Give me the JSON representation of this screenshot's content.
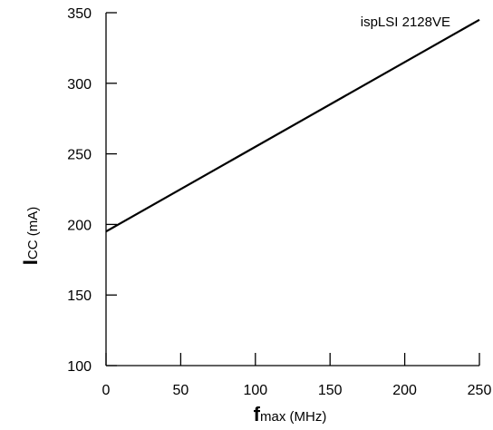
{
  "chart_data": {
    "type": "line",
    "annotation": "ispLSI 2128VE",
    "xlabel": {
      "main": "f",
      "sub": "max",
      "unit": " (MHz)"
    },
    "ylabel": {
      "main": "I",
      "sub": "CC",
      "unit": " (mA)"
    },
    "xlim": [
      0,
      250
    ],
    "ylim": [
      100,
      350
    ],
    "xticks": [
      0,
      50,
      100,
      150,
      200,
      250
    ],
    "yticks": [
      100,
      150,
      200,
      250,
      300,
      350
    ],
    "series": [
      {
        "x": [
          0,
          250
        ],
        "y": [
          195,
          345
        ]
      }
    ],
    "grid": false,
    "line_color": "#000000"
  }
}
